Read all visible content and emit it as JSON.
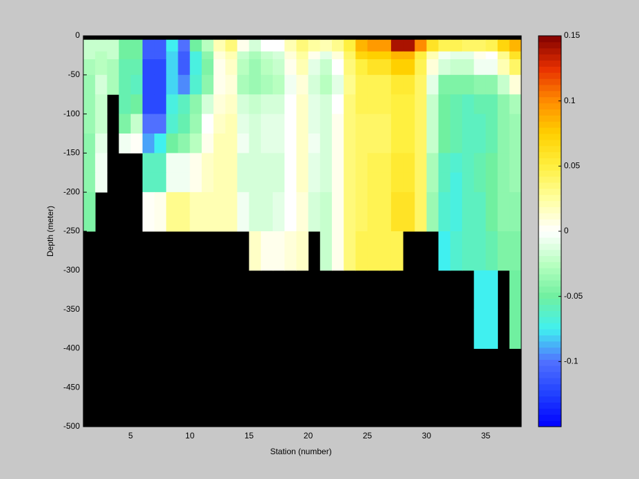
{
  "chart_data": {
    "type": "heatmap",
    "xlabel": "Station (number)",
    "ylabel": "Depth (meter)",
    "x_edges": [
      1,
      2,
      3,
      4,
      5,
      6,
      7,
      8,
      9,
      10,
      11,
      12,
      13,
      14,
      15,
      16,
      17,
      18,
      19,
      20,
      21,
      22,
      23,
      24,
      25,
      26,
      27,
      28,
      29,
      30,
      31,
      32,
      33,
      34,
      35,
      36,
      37,
      38
    ],
    "depth_edges": [
      -5,
      -20,
      -30,
      -50,
      -75,
      -100,
      -125,
      -150,
      -175,
      -200,
      -250,
      -300,
      -350,
      -400
    ],
    "values": [
      [
        -0.02,
        -0.02,
        -0.02,
        -0.05,
        -0.05,
        -0.11,
        -0.11,
        -0.075,
        -0.1,
        -0.05,
        -0.025,
        0.02,
        0.035,
        0.005,
        -0.015,
        0,
        0,
        0.02,
        0.035,
        0.025,
        0.02,
        0.03,
        0.05,
        0.085,
        0.095,
        0.095,
        0.14,
        0.14,
        0.1,
        0.06,
        0.045,
        0.045,
        0.04,
        0.04,
        0.045,
        0.07,
        0.085
      ],
      [
        -0.02,
        -0.025,
        -0.02,
        -0.05,
        -0.05,
        -0.11,
        -0.11,
        -0.08,
        -0.11,
        -0.07,
        -0.04,
        0.01,
        0.02,
        -0.02,
        -0.03,
        -0.02,
        -0.015,
        0.01,
        0.025,
        0.005,
        -0.01,
        0.01,
        0.04,
        0.07,
        0.075,
        0.075,
        0.085,
        0.085,
        0.05,
        0.02,
        -0.005,
        -0.01,
        -0.01,
        0.005,
        0,
        0.03,
        0.06
      ],
      [
        -0.03,
        -0.025,
        -0.03,
        -0.055,
        -0.055,
        -0.12,
        -0.12,
        -0.08,
        -0.11,
        -0.07,
        -0.045,
        0.005,
        0.015,
        -0.025,
        -0.035,
        -0.025,
        -0.02,
        0.005,
        0.02,
        -0.01,
        -0.02,
        0,
        0.035,
        0.05,
        0.06,
        0.06,
        0.075,
        0.075,
        0.045,
        0.01,
        -0.015,
        -0.02,
        -0.02,
        -0.005,
        -0.005,
        0.02,
        0.04
      ],
      [
        -0.035,
        -0.015,
        -0.03,
        -0.055,
        -0.06,
        -0.12,
        -0.12,
        -0.08,
        -0.095,
        -0.065,
        -0.04,
        0.005,
        0.01,
        -0.03,
        -0.035,
        -0.03,
        -0.025,
        -0.005,
        0.01,
        -0.015,
        -0.025,
        -0.01,
        0.03,
        0.045,
        0.045,
        0.045,
        0.055,
        0.055,
        0.04,
        -0.01,
        -0.045,
        -0.045,
        -0.045,
        -0.04,
        -0.04,
        -0.02,
        0.01
      ],
      [
        -0.035,
        -0.02,
        null,
        -0.055,
        -0.05,
        -0.12,
        -0.12,
        -0.07,
        -0.06,
        -0.04,
        -0.015,
        0.01,
        0.015,
        -0.015,
        -0.02,
        -0.015,
        -0.015,
        0,
        0.015,
        -0.01,
        -0.015,
        0,
        0.035,
        0.045,
        0.045,
        0.045,
        0.05,
        0.05,
        0.04,
        -0.02,
        -0.05,
        -0.055,
        -0.06,
        -0.055,
        -0.055,
        -0.04,
        -0.03
      ],
      [
        -0.035,
        -0.02,
        null,
        -0.045,
        -0.02,
        -0.1,
        -0.1,
        -0.065,
        -0.055,
        -0.035,
        0,
        0.015,
        0.02,
        -0.01,
        -0.015,
        -0.01,
        -0.01,
        0,
        0.015,
        -0.01,
        -0.015,
        0.005,
        0.035,
        0.04,
        0.04,
        0.04,
        0.05,
        0.05,
        0.04,
        -0.02,
        -0.05,
        -0.055,
        -0.06,
        -0.06,
        -0.055,
        -0.04,
        -0.035
      ],
      [
        -0.04,
        -0.01,
        null,
        -0.005,
        0.002,
        -0.09,
        -0.075,
        -0.05,
        -0.04,
        -0.025,
        0.005,
        0.02,
        0.02,
        -0.005,
        -0.015,
        -0.01,
        -0.01,
        0,
        0.015,
        -0.005,
        -0.015,
        0.005,
        0.035,
        0.04,
        0.04,
        0.04,
        0.05,
        0.05,
        0.04,
        -0.02,
        -0.05,
        -0.055,
        -0.06,
        -0.06,
        -0.055,
        -0.04,
        -0.035
      ],
      [
        -0.04,
        -0.005,
        null,
        null,
        null,
        -0.06,
        -0.06,
        -0.005,
        -0.005,
        0.005,
        0.015,
        0.02,
        0.02,
        -0.015,
        -0.015,
        -0.015,
        -0.015,
        0,
        0.015,
        -0.01,
        -0.015,
        0.005,
        0.035,
        0.04,
        0.045,
        0.045,
        0.055,
        0.055,
        0.04,
        -0.03,
        -0.06,
        -0.065,
        -0.06,
        -0.055,
        -0.05,
        -0.04,
        -0.035
      ],
      [
        -0.04,
        -0.005,
        null,
        null,
        null,
        -0.06,
        -0.06,
        -0.005,
        -0.005,
        0.005,
        0.015,
        0.02,
        0.02,
        -0.015,
        -0.015,
        -0.015,
        -0.015,
        0,
        0.015,
        -0.01,
        -0.015,
        0.005,
        0.035,
        0.04,
        0.045,
        0.045,
        0.055,
        0.055,
        0.04,
        -0.03,
        -0.06,
        -0.07,
        -0.06,
        -0.055,
        -0.05,
        -0.04,
        -0.035
      ],
      [
        -0.045,
        null,
        null,
        null,
        null,
        0.002,
        0.005,
        0.03,
        0.03,
        0.02,
        0.02,
        0.02,
        0.02,
        -0.005,
        -0.015,
        -0.015,
        -0.01,
        0,
        0.01,
        -0.015,
        -0.02,
        0.005,
        0.035,
        0.04,
        0.045,
        0.045,
        0.06,
        0.06,
        0.04,
        -0.035,
        -0.065,
        -0.07,
        -0.06,
        -0.06,
        -0.05,
        -0.04,
        -0.04
      ],
      [
        null,
        null,
        null,
        null,
        null,
        null,
        null,
        null,
        null,
        null,
        null,
        null,
        null,
        null,
        0.015,
        0.005,
        0.005,
        0.01,
        0.015,
        null,
        -0.02,
        0.005,
        0.035,
        0.045,
        0.045,
        0.045,
        0.045,
        null,
        null,
        null,
        -0.075,
        -0.065,
        -0.06,
        -0.06,
        -0.055,
        -0.045,
        -0.045
      ],
      [
        null,
        null,
        null,
        null,
        null,
        null,
        null,
        null,
        null,
        null,
        null,
        null,
        null,
        null,
        null,
        null,
        null,
        null,
        null,
        null,
        null,
        null,
        null,
        null,
        null,
        null,
        null,
        null,
        null,
        null,
        null,
        null,
        null,
        -0.075,
        -0.075,
        null,
        -0.05
      ],
      [
        null,
        null,
        null,
        null,
        null,
        null,
        null,
        null,
        null,
        null,
        null,
        null,
        null,
        null,
        null,
        null,
        null,
        null,
        null,
        null,
        null,
        null,
        null,
        null,
        null,
        null,
        null,
        null,
        null,
        null,
        null,
        null,
        null,
        -0.075,
        -0.075,
        null,
        -0.05
      ]
    ],
    "xlim": [
      1,
      38
    ],
    "xticks": [
      5,
      10,
      15,
      20,
      25,
      30,
      35
    ],
    "ylim": [
      -500,
      0
    ],
    "yticks": [
      0,
      -50,
      -100,
      -150,
      -200,
      -250,
      -300,
      -350,
      -400,
      -450,
      -500
    ],
    "clim": [
      -0.15,
      0.15
    ],
    "cticks": [
      -0.1,
      -0.05,
      0,
      0.05,
      0.1,
      0.15
    ],
    "colormap": [
      "#0000ff",
      "#2040ff",
      "#5070ff",
      "#40f0f0",
      "#70f0a0",
      "#b8ffc0",
      "#ffffff",
      "#ffffa0",
      "#fff040",
      "#ffd000",
      "#ff8c00",
      "#e83000",
      "#800000"
    ],
    "background": "#000000"
  }
}
